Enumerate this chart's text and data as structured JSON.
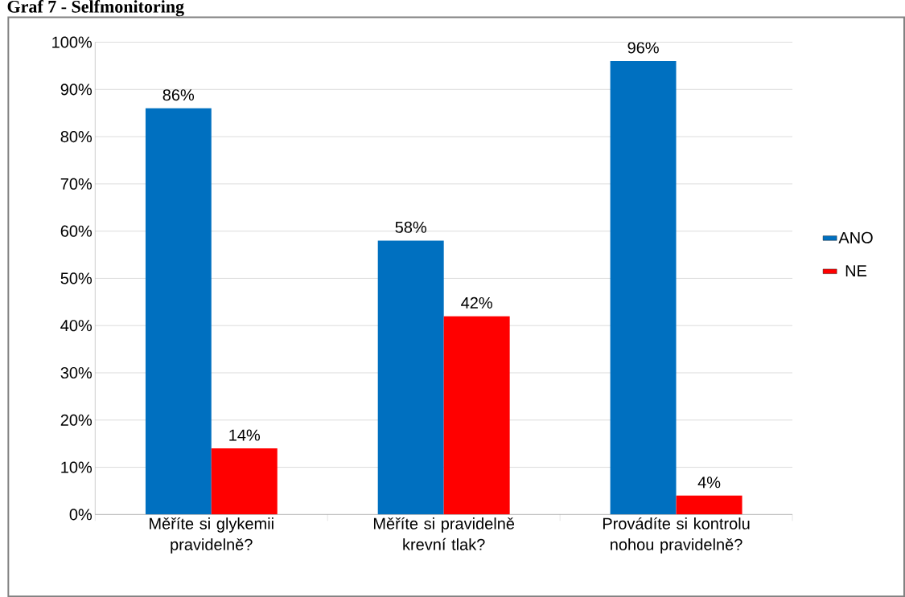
{
  "chart_data": {
    "type": "bar",
    "title": "Graf 7 - Selfmonitoring",
    "categories": [
      "Měříte si glykemii pravidelně?",
      "Měříte si pravidelně krevní tlak?",
      "Provádíte si kontrolu nohou pravidelně?"
    ],
    "series": [
      {
        "name": "ANO",
        "color": "#0070c0",
        "values": [
          86,
          58,
          96
        ],
        "value_labels": [
          "86%",
          "58%",
          "96%"
        ]
      },
      {
        "name": "NE",
        "color": "#ff0000",
        "values": [
          14,
          42,
          4
        ],
        "value_labels": [
          "14%",
          "42%",
          "4%"
        ]
      }
    ],
    "ylim": [
      0,
      100
    ],
    "yticks": [
      {
        "value": 0,
        "label": "0%"
      },
      {
        "value": 10,
        "label": "10%"
      },
      {
        "value": 20,
        "label": "20%"
      },
      {
        "value": 30,
        "label": "30%"
      },
      {
        "value": 40,
        "label": "40%"
      },
      {
        "value": 50,
        "label": "50%"
      },
      {
        "value": 60,
        "label": "60%"
      },
      {
        "value": 70,
        "label": "70%"
      },
      {
        "value": 80,
        "label": "80%"
      },
      {
        "value": 90,
        "label": "90%"
      },
      {
        "value": 100,
        "label": "100%"
      }
    ],
    "grid": "y",
    "legend": "right"
  }
}
